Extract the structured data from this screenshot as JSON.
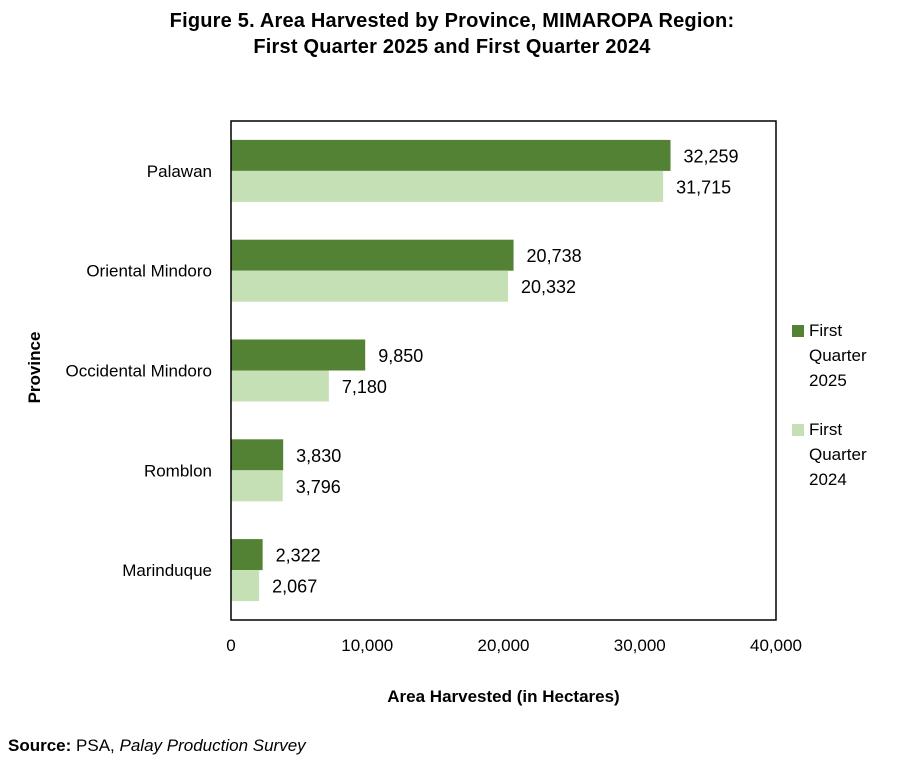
{
  "title_line1": "Figure 5. Area Harvested by Province, MIMAROPA Region:",
  "title_line2": "First Quarter 2025 and First Quarter 2024",
  "source": {
    "label": "Source:",
    "org": "PSA,",
    "survey": "Palay Production Survey"
  },
  "colors": {
    "q2025": "#548235",
    "q2024": "#c5e0b4",
    "frame": "#000000"
  },
  "chart_data": {
    "type": "bar",
    "orientation": "horizontal",
    "categories": [
      "Palawan",
      "Oriental Mindoro",
      "Occidental Mindoro",
      "Romblon",
      "Marinduque"
    ],
    "series": [
      {
        "name": "First Quarter 2025",
        "values": [
          32259,
          20738,
          9850,
          3830,
          2322
        ]
      },
      {
        "name": "First Quarter 2024",
        "values": [
          31715,
          20332,
          7180,
          3796,
          2067
        ]
      }
    ],
    "value_labels": [
      [
        "32,259",
        "20,738",
        "9,850",
        "3,830",
        "2,322"
      ],
      [
        "31,715",
        "20,332",
        "7,180",
        "3,796",
        "2,067"
      ]
    ],
    "xlabel": "Area Harvested (in Hectares)",
    "ylabel": "Province",
    "xlim": [
      0,
      40000
    ],
    "xticks": [
      0,
      10000,
      20000,
      30000,
      40000
    ],
    "xtick_labels": [
      "0",
      "10,000",
      "20,000",
      "30,000",
      "40,000"
    ],
    "legend": {
      "placement": "right",
      "entries": [
        {
          "lines": [
            "First",
            "Quarter",
            "2025"
          ]
        },
        {
          "lines": [
            "First",
            "Quarter",
            "2024"
          ]
        }
      ]
    },
    "grid": false
  }
}
